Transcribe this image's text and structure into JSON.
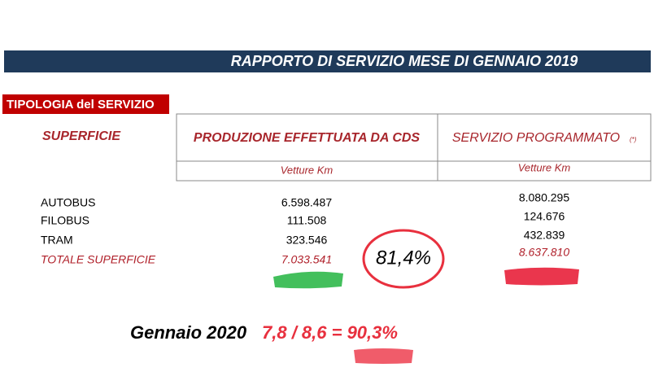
{
  "header": {
    "title": "RAPPORTO DI SERVIZIO MESE DI GENNAIO 2019"
  },
  "section": {
    "label": "TIPOLOGIA del SERVIZIO",
    "group": "SUPERFICIE"
  },
  "table": {
    "columns": [
      {
        "title": "PRODUZIONE EFFETTUATA DA CDS",
        "unit": "Vetture Km"
      },
      {
        "title": "SERVIZIO PROGRAMMATO",
        "note": "(*)",
        "unit": "Vetture Km"
      }
    ],
    "rows": [
      [
        "AUTOBUS",
        "6.598.487",
        "8.080.295"
      ],
      [
        "FILOBUS",
        "111.508",
        "124.676"
      ],
      [
        "TRAM",
        "323.546",
        "432.839"
      ],
      [
        "TOTALE SUPERFICIE",
        "7.033.541",
        "8.637.810"
      ]
    ]
  },
  "annotations": {
    "ratio": "81,4%",
    "label": "Gennaio 2020",
    "formula": "7,8 / 8,6 = 90,3%"
  }
}
